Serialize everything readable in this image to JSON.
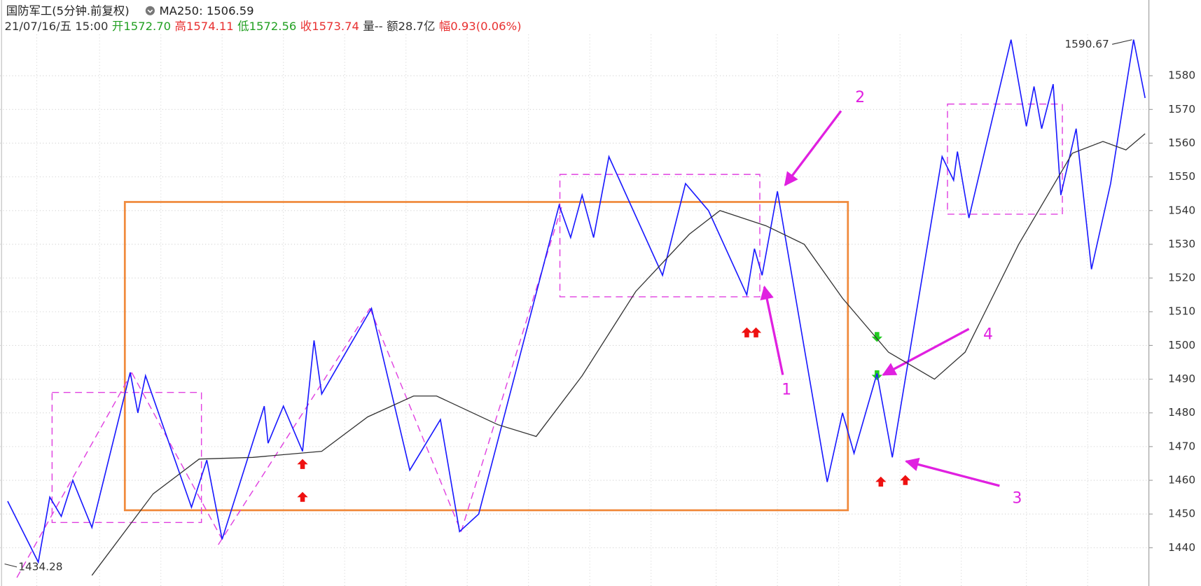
{
  "chart_data": {
    "type": "line",
    "title": "国防军工(5分钟.前复权)",
    "ma_text": "MA250: 1506.59",
    "info": [
      {
        "text": "21/07/16/五 15:00",
        "color": "#333333"
      },
      {
        "text": "开",
        "color": "#22a022"
      },
      {
        "text": "1572.70",
        "color": "#22a022"
      },
      {
        "text": "高",
        "color": "#e83030"
      },
      {
        "text": "1574.11",
        "color": "#e83030"
      },
      {
        "text": "低",
        "color": "#22a022"
      },
      {
        "text": "1572.56",
        "color": "#22a022"
      },
      {
        "text": "收",
        "color": "#e83030"
      },
      {
        "text": "1573.74",
        "color": "#e83030"
      },
      {
        "text": "量--",
        "color": "#333333"
      },
      {
        "text": "额28.7亿",
        "color": "#333333"
      },
      {
        "text": "幅",
        "color": "#e83030"
      },
      {
        "text": "0.93(0.06%)",
        "color": "#e83030"
      }
    ],
    "high_label": 1590.67,
    "low_label": 1434.28,
    "annotations": [
      "1",
      "2",
      "3",
      "4"
    ],
    "xlim": [
      0,
      300
    ],
    "ylim": [
      1428.65,
      1602.46
    ],
    "yticks": [
      1440,
      1450,
      1460,
      1470,
      1480,
      1490,
      1500,
      1510,
      1520,
      1530,
      1540,
      1550,
      1560,
      1570,
      1580
    ],
    "grid": true,
    "series": [
      {
        "color": "#1a1aff",
        "x": [
          2,
          10,
          13,
          16,
          19,
          24,
          34,
          36,
          38,
          50,
          54,
          58,
          69,
          70,
          74,
          79,
          82,
          84,
          97,
          107,
          115,
          120,
          125,
          146,
          149,
          152,
          155,
          159,
          173,
          179,
          185,
          195,
          197,
          199,
          203,
          216,
          220,
          223,
          229,
          233,
          246,
          249,
          250,
          253,
          264,
          268,
          270,
          272,
          275,
          277,
          281,
          285,
          290,
          296,
          299
        ],
        "values": [
          1453.8,
          1435.7,
          1455,
          1449.3,
          1460,
          1446,
          1492,
          1480,
          1491,
          1452,
          1466,
          1442.5,
          1482,
          1471,
          1482,
          1468.6,
          1501.5,
          1485.6,
          1511,
          1463,
          1478,
          1444.8,
          1450,
          1541.6,
          1532,
          1544.6,
          1532,
          1556,
          1520.8,
          1548,
          1540,
          1515,
          1528.7,
          1520.8,
          1545.7,
          1459.5,
          1480,
          1468,
          1491.7,
          1466.8,
          1556,
          1549,
          1557.5,
          1537.8,
          1590.7,
          1565,
          1576.8,
          1564.3,
          1577.5,
          1544.6,
          1564.3,
          1522.6,
          1548,
          1590.7,
          1573.4
        ]
      },
      {
        "color": "#333333",
        "x": [
          24,
          40,
          52,
          66,
          84,
          96,
          108,
          114,
          130,
          140,
          152,
          166,
          180,
          188,
          200,
          210,
          220,
          232,
          244,
          252,
          266,
          280,
          288,
          294,
          299
        ],
        "values": [
          1431.8,
          1456,
          1466.3,
          1466.8,
          1468.6,
          1478.8,
          1485,
          1485,
          1476.5,
          1473,
          1491,
          1516,
          1533,
          1540,
          1535.5,
          1530,
          1514,
          1498,
          1490,
          1498,
          1530,
          1557,
          1560.5,
          1558,
          1562.8
        ]
      }
    ]
  }
}
